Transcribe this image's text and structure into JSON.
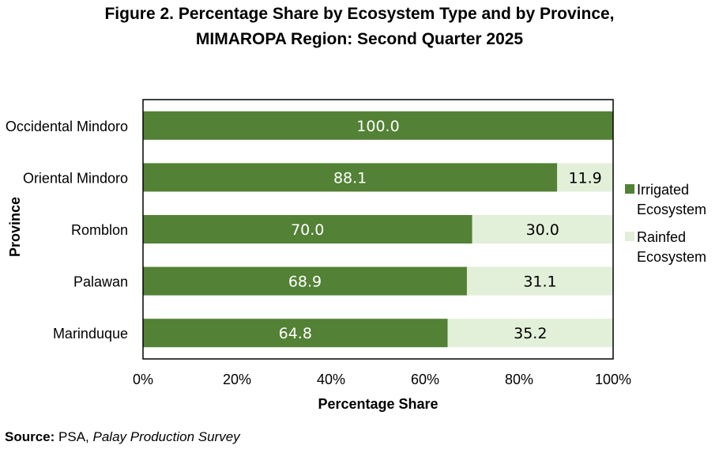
{
  "chart_data": {
    "type": "bar",
    "orientation": "horizontal",
    "stacked": true,
    "title_line1": "Figure 2. Percentage Share by Ecosystem Type and by Province,",
    "title_line2": "MIMAROPA Region: Second Quarter 2025",
    "xlabel": "Percentage Share",
    "ylabel": "Province",
    "xlim": [
      0,
      100
    ],
    "x_ticks": [
      "0%",
      "20%",
      "40%",
      "60%",
      "80%",
      "100%"
    ],
    "categories": [
      "Occidental Mindoro",
      "Oriental Mindoro",
      "Romblon",
      "Palawan",
      "Marinduque"
    ],
    "series": [
      {
        "name": "Irrigated Ecosystem",
        "legend_lines": [
          "Irrigated",
          "Ecosystem"
        ],
        "color": "#538135",
        "label_color": "#ffffff",
        "values": [
          100.0,
          88.1,
          70.0,
          68.9,
          64.8
        ],
        "labels": [
          "100.0",
          "88.1",
          "70.0",
          "68.9",
          "64.8"
        ]
      },
      {
        "name": "Rainfed Ecosystem",
        "legend_lines": [
          "Rainfed",
          "Ecosystem"
        ],
        "color": "#e2efd9",
        "label_color": "#000000",
        "values": [
          0,
          11.9,
          30.0,
          31.1,
          35.2
        ],
        "labels": [
          "",
          "11.9",
          "30.0",
          "31.1",
          "35.2"
        ]
      }
    ],
    "legend_position": "right",
    "grid": false
  },
  "source": {
    "label": "Source:",
    "publisher": "PSA,",
    "survey": "Palay Production Survey"
  }
}
